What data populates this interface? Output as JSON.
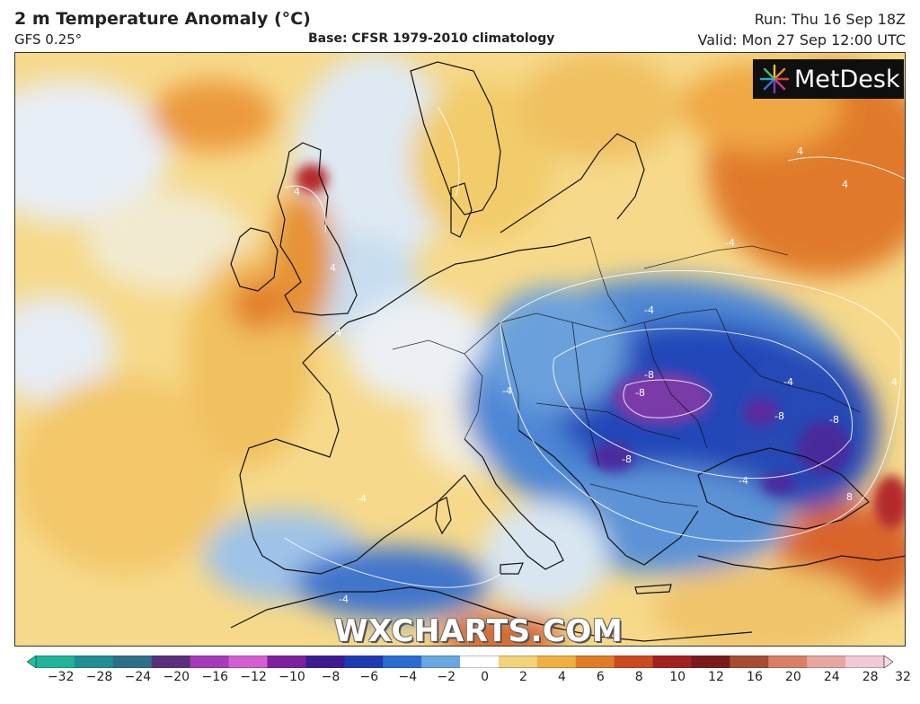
{
  "header": {
    "title": "2 m Temperature Anomaly (°C)",
    "model": "GFS 0.25°",
    "base": "Base: CFSR 1979-2010 climatology",
    "run": "Run: Thu 16 Sep 18Z",
    "valid": "Valid: Mon 27 Sep 12:00 UTC"
  },
  "logo": {
    "text": "MetDesk",
    "icon": "metdesk-starburst-icon"
  },
  "watermark": "WXCHARTS.COM",
  "colorbar": {
    "ticks": [
      "−32",
      "−28",
      "−24",
      "−20",
      "−16",
      "−12",
      "−10",
      "−8",
      "−6",
      "−4",
      "−2",
      "0",
      "2",
      "4",
      "6",
      "8",
      "10",
      "12",
      "16",
      "20",
      "24",
      "28",
      "32"
    ],
    "colors": [
      "#1fb39a",
      "#1e8f93",
      "#2d6f8a",
      "#5a2f7c",
      "#a63ab8",
      "#d35fd0",
      "#7e1f9e",
      "#3b1b8f",
      "#1e3ab0",
      "#2a6cd0",
      "#6aa7e0",
      "#ffffff",
      "#f3d37a",
      "#efb042",
      "#e07b26",
      "#cc4a1e",
      "#a2211e",
      "#7a1a1a",
      "#a64c30",
      "#d97f66",
      "#e7a7a0",
      "#f2c9d6"
    ]
  },
  "map_labels": {
    "values": [
      "-4",
      "-4",
      "-4",
      "-4",
      "-4",
      "-4",
      "-4",
      "-4",
      "-8",
      "-8",
      "-8",
      "-8",
      "-8",
      "4",
      "4",
      "4",
      "4",
      "4",
      "8"
    ]
  }
}
